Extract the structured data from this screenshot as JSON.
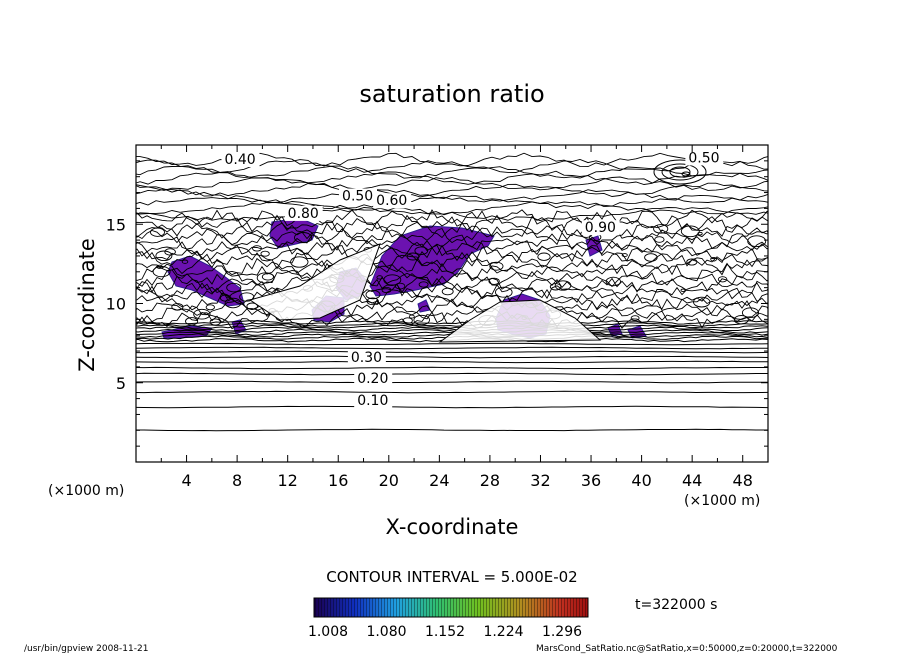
{
  "chart_data": {
    "type": "contour",
    "title": "saturation ratio",
    "xlabel": "X-coordinate",
    "ylabel": "Z-coordinate",
    "x_unit": "(×1000 m)",
    "y_unit": "(×1000 m)",
    "xlim": [
      0,
      50
    ],
    "ylim": [
      0,
      20
    ],
    "x_ticks": [
      4,
      8,
      12,
      16,
      20,
      24,
      28,
      32,
      36,
      40,
      44,
      48
    ],
    "y_ticks": [
      5,
      10,
      15
    ],
    "contour_interval_text": "CONTOUR INTERVAL = 5.000E-02",
    "contour_levels_labeled": [
      {
        "value": 0.1,
        "label": "0.10",
        "x": 17.5,
        "z": 3.6
      },
      {
        "value": 0.2,
        "label": "0.20",
        "x": 17.5,
        "z": 5.0
      },
      {
        "value": 0.3,
        "label": "0.30",
        "x": 17.0,
        "z": 6.3
      },
      {
        "value": 0.4,
        "label": "0.40",
        "x": 7.0,
        "z": 18.8
      },
      {
        "value": 0.5,
        "label": "0.50",
        "x": 16.3,
        "z": 16.5
      },
      {
        "value": 0.5,
        "label": "0.50",
        "x": 43.7,
        "z": 18.9
      },
      {
        "value": 0.6,
        "label": "0.60",
        "x": 19.0,
        "z": 16.2
      },
      {
        "value": 0.8,
        "label": "0.80",
        "x": 12.0,
        "z": 15.4
      },
      {
        "value": 0.9,
        "label": "0.90",
        "x": 35.5,
        "z": 14.5
      }
    ],
    "shaded_threshold": 1.0,
    "colorbar": {
      "labels": [
        "1.008",
        "1.080",
        "1.152",
        "1.224",
        "1.296"
      ],
      "min": 1.008,
      "max": 1.296
    },
    "time_label": "t=322000 s",
    "colors": {
      "shade": "#6b12b0",
      "shade_edge": "#2a1f8f",
      "line": "#000000"
    }
  },
  "footer": {
    "left": "/usr/bin/gpview   2008-11-21",
    "right": "MarsCond_SatRatio.nc@SatRatio,x=0:50000,z=0:20000,t=322000"
  }
}
